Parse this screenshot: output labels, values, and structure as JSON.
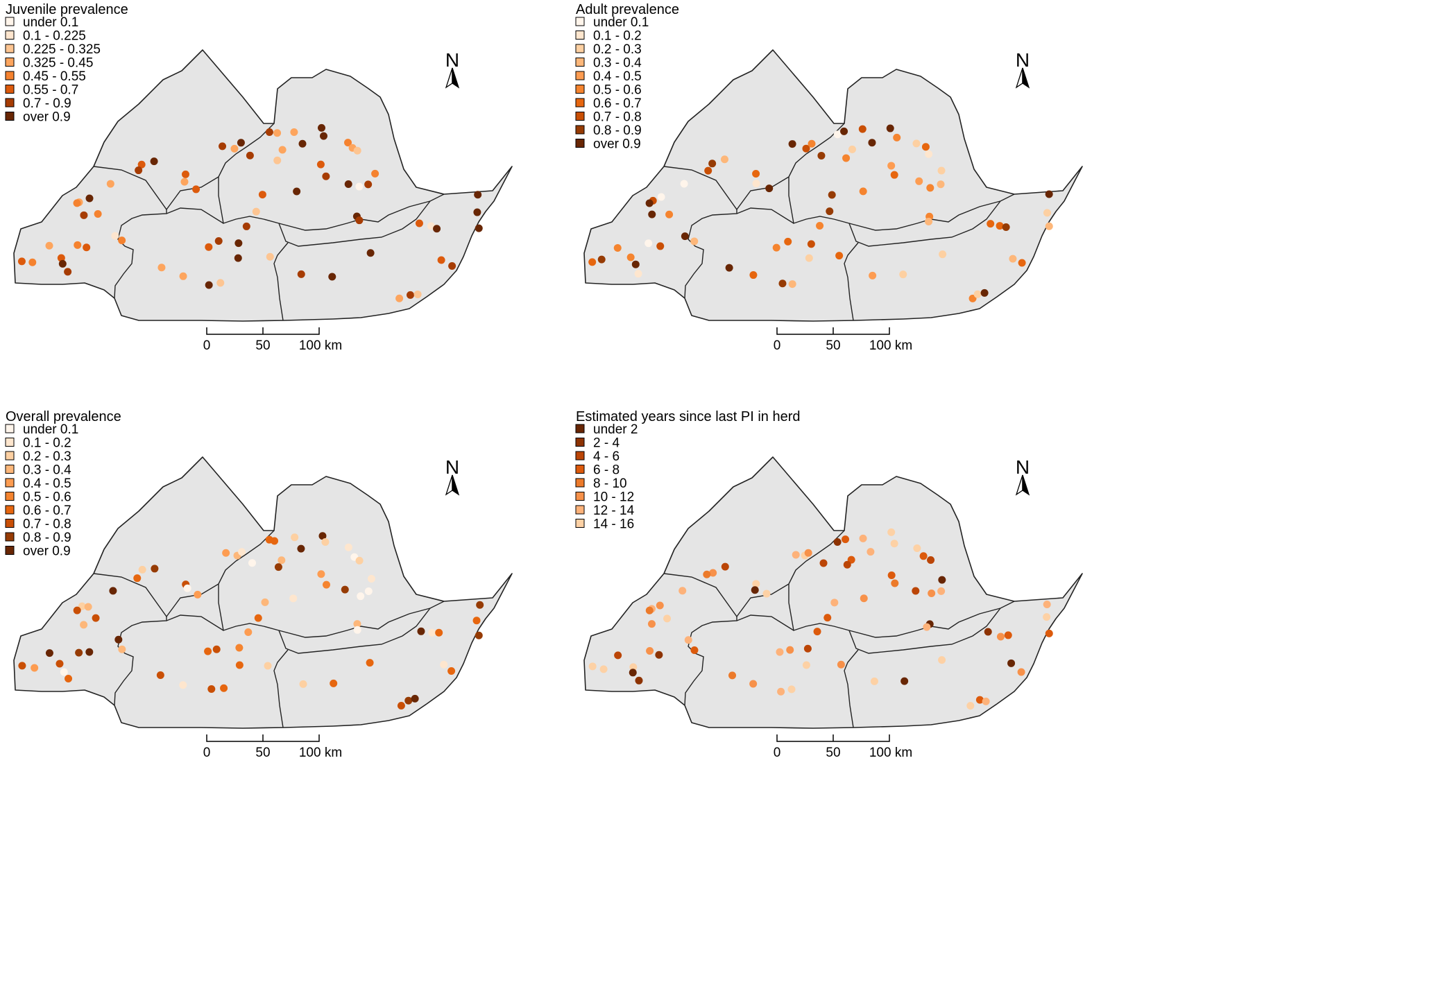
{
  "scale_bar": {
    "ticks": [
      "0",
      "50",
      "100 km"
    ]
  },
  "north_arrow_label": "N",
  "colors": {
    "land": "#e5e5e5",
    "border": "#222222",
    "ramp": [
      "#fff5eb",
      "#fde0c2",
      "#fdc28c",
      "#fdaa66",
      "#f7914a",
      "#ec7a2a",
      "#dc5a0c",
      "#bb4506",
      "#8d3303",
      "#682604"
    ]
  },
  "panels": [
    {
      "id": "juvenile",
      "title": "Juvenile prevalence",
      "legend": [
        {
          "label": "under 0.1",
          "color": "#fff5eb"
        },
        {
          "label": "0.1 - 0.225",
          "color": "#fde5ce"
        },
        {
          "label": "0.225 - 0.325",
          "color": "#fdc592"
        },
        {
          "label": "0.325 - 0.45",
          "color": "#fda55e"
        },
        {
          "label": "0.45 - 0.55",
          "color": "#f5822f"
        },
        {
          "label": "0.55 - 0.7",
          "color": "#dc5a0c"
        },
        {
          "label": "0.7 - 0.9",
          "color": "#a63c03"
        },
        {
          "label": "over 0.9",
          "color": "#682604"
        }
      ]
    },
    {
      "id": "adult",
      "title": "Adult prevalence",
      "legend": [
        {
          "label": "under 0.1",
          "color": "#fff5eb"
        },
        {
          "label": "0.1 - 0.2",
          "color": "#fee6ce"
        },
        {
          "label": "0.2 - 0.3",
          "color": "#fdd0a2"
        },
        {
          "label": "0.3 - 0.4",
          "color": "#fdb77a"
        },
        {
          "label": "0.4 - 0.5",
          "color": "#fd9c51"
        },
        {
          "label": "0.5 - 0.6",
          "color": "#f5842f"
        },
        {
          "label": "0.6 - 0.7",
          "color": "#e6660f"
        },
        {
          "label": "0.7 - 0.8",
          "color": "#c94f05"
        },
        {
          "label": "0.8 - 0.9",
          "color": "#963b04"
        },
        {
          "label": "over 0.9",
          "color": "#682604"
        }
      ]
    },
    {
      "id": "overall",
      "title": "Overall prevalence",
      "legend": [
        {
          "label": "under 0.1",
          "color": "#fff5eb"
        },
        {
          "label": "0.1 - 0.2",
          "color": "#fee6ce"
        },
        {
          "label": "0.2 - 0.3",
          "color": "#fdd0a2"
        },
        {
          "label": "0.3 - 0.4",
          "color": "#fdb77a"
        },
        {
          "label": "0.4 - 0.5",
          "color": "#fd9c51"
        },
        {
          "label": "0.5 - 0.6",
          "color": "#f5842f"
        },
        {
          "label": "0.6 - 0.7",
          "color": "#e6660f"
        },
        {
          "label": "0.7 - 0.8",
          "color": "#c94f05"
        },
        {
          "label": "0.8 - 0.9",
          "color": "#963b04"
        },
        {
          "label": "over 0.9",
          "color": "#682604"
        }
      ]
    },
    {
      "id": "years",
      "title": "Estimated years since last PI in herd",
      "legend": [
        {
          "label": "under 2",
          "color": "#682604"
        },
        {
          "label": "2 - 4",
          "color": "#8d3303"
        },
        {
          "label": "4 - 6",
          "color": "#bb4506"
        },
        {
          "label": "6 - 8",
          "color": "#dc5a0c"
        },
        {
          "label": "8 - 10",
          "color": "#ec7a2a"
        },
        {
          "label": "10 - 12",
          "color": "#f7914a"
        },
        {
          "label": "12 - 14",
          "color": "#fdb27a"
        },
        {
          "label": "14 - 16",
          "color": "#fdd1a5"
        }
      ]
    }
  ]
}
